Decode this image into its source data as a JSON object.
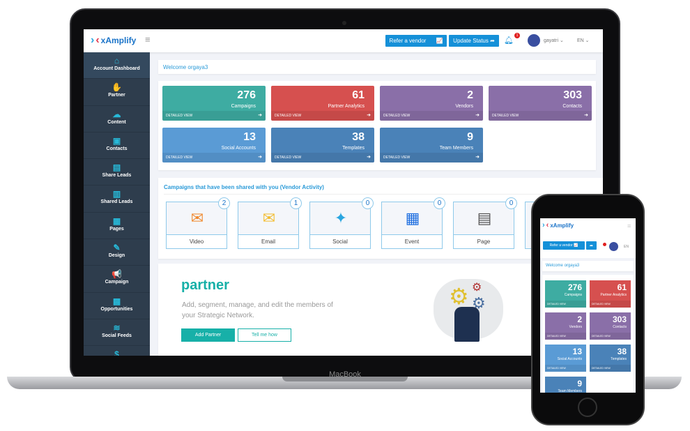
{
  "app": {
    "logo": "xAmplify",
    "device_label": "MacBook"
  },
  "header": {
    "refer_vendor": "Refer a vendor",
    "update_status": "Update Status",
    "notification_count": "1",
    "user": "gayatri",
    "language": "EN"
  },
  "sidebar": {
    "items": [
      {
        "label": "Account Dashboard",
        "icon": "home-icon",
        "glyph": "⌂",
        "active": true
      },
      {
        "label": "Partner",
        "icon": "handshake-icon",
        "glyph": "✋"
      },
      {
        "label": "Content",
        "icon": "cloud-upload-icon",
        "glyph": "☁"
      },
      {
        "label": "Contacts",
        "icon": "contact-card-icon",
        "glyph": "▣"
      },
      {
        "label": "Share Leads",
        "icon": "share-leads-icon",
        "glyph": "▤"
      },
      {
        "label": "Shared Leads",
        "icon": "shared-leads-icon",
        "glyph": "▥"
      },
      {
        "label": "Pages",
        "icon": "pages-icon",
        "glyph": "▦"
      },
      {
        "label": "Design",
        "icon": "brush-icon",
        "glyph": "✎"
      },
      {
        "label": "Campaign",
        "icon": "megaphone-icon",
        "glyph": "📢"
      },
      {
        "label": "Opportunities",
        "icon": "money-icon",
        "glyph": "▩"
      },
      {
        "label": "Social Feeds",
        "icon": "rss-icon",
        "glyph": "≋"
      },
      {
        "label": "",
        "icon": "dollar-icon",
        "glyph": "$"
      }
    ]
  },
  "welcome": "Welcome orgaya3",
  "stats": [
    {
      "value": "276",
      "label": "Campaigns",
      "color": "#3eaca2"
    },
    {
      "value": "61",
      "label": "Partner Analytics",
      "color": "#d6504f"
    },
    {
      "value": "2",
      "label": "Vendors",
      "color": "#8a6fa8"
    },
    {
      "value": "303",
      "label": "Contacts",
      "color": "#8a6fa8"
    },
    {
      "value": "13",
      "label": "Social Accounts",
      "color": "#5a9bd5"
    },
    {
      "value": "38",
      "label": "Templates",
      "color": "#4a82b8"
    },
    {
      "value": "9",
      "label": "Team Members",
      "color": "#4a82b8"
    }
  ],
  "detailed_view": "DETAILED VIEW",
  "vendor_activity": {
    "title": "Campaigns that have been shared with you (Vendor Activity)",
    "cards": [
      {
        "label": "Video",
        "count": "2",
        "icon": "video-envelope-icon",
        "glyph": "✉",
        "color": "#f0892e"
      },
      {
        "label": "Email",
        "count": "1",
        "icon": "email-envelope-icon",
        "glyph": "✉",
        "color": "#f3bd30"
      },
      {
        "label": "Social",
        "count": "0",
        "icon": "social-bubbles-icon",
        "glyph": "✦",
        "color": "#2aa6e0"
      },
      {
        "label": "Event",
        "count": "0",
        "icon": "calendar-icon",
        "glyph": "▦",
        "color": "#1f6fe0"
      },
      {
        "label": "Page",
        "count": "0",
        "icon": "page-icon",
        "glyph": "▤",
        "color": "#555"
      }
    ]
  },
  "partner": {
    "title": "partner",
    "description": "Add, segment, manage, and edit the members of your Strategic Network.",
    "add_button": "Add Partner",
    "tell_button": "Tell me how"
  },
  "colors": {
    "accent": "#1590d8",
    "teal": "#17b0a8",
    "sidebar": "#2e3d4d"
  }
}
